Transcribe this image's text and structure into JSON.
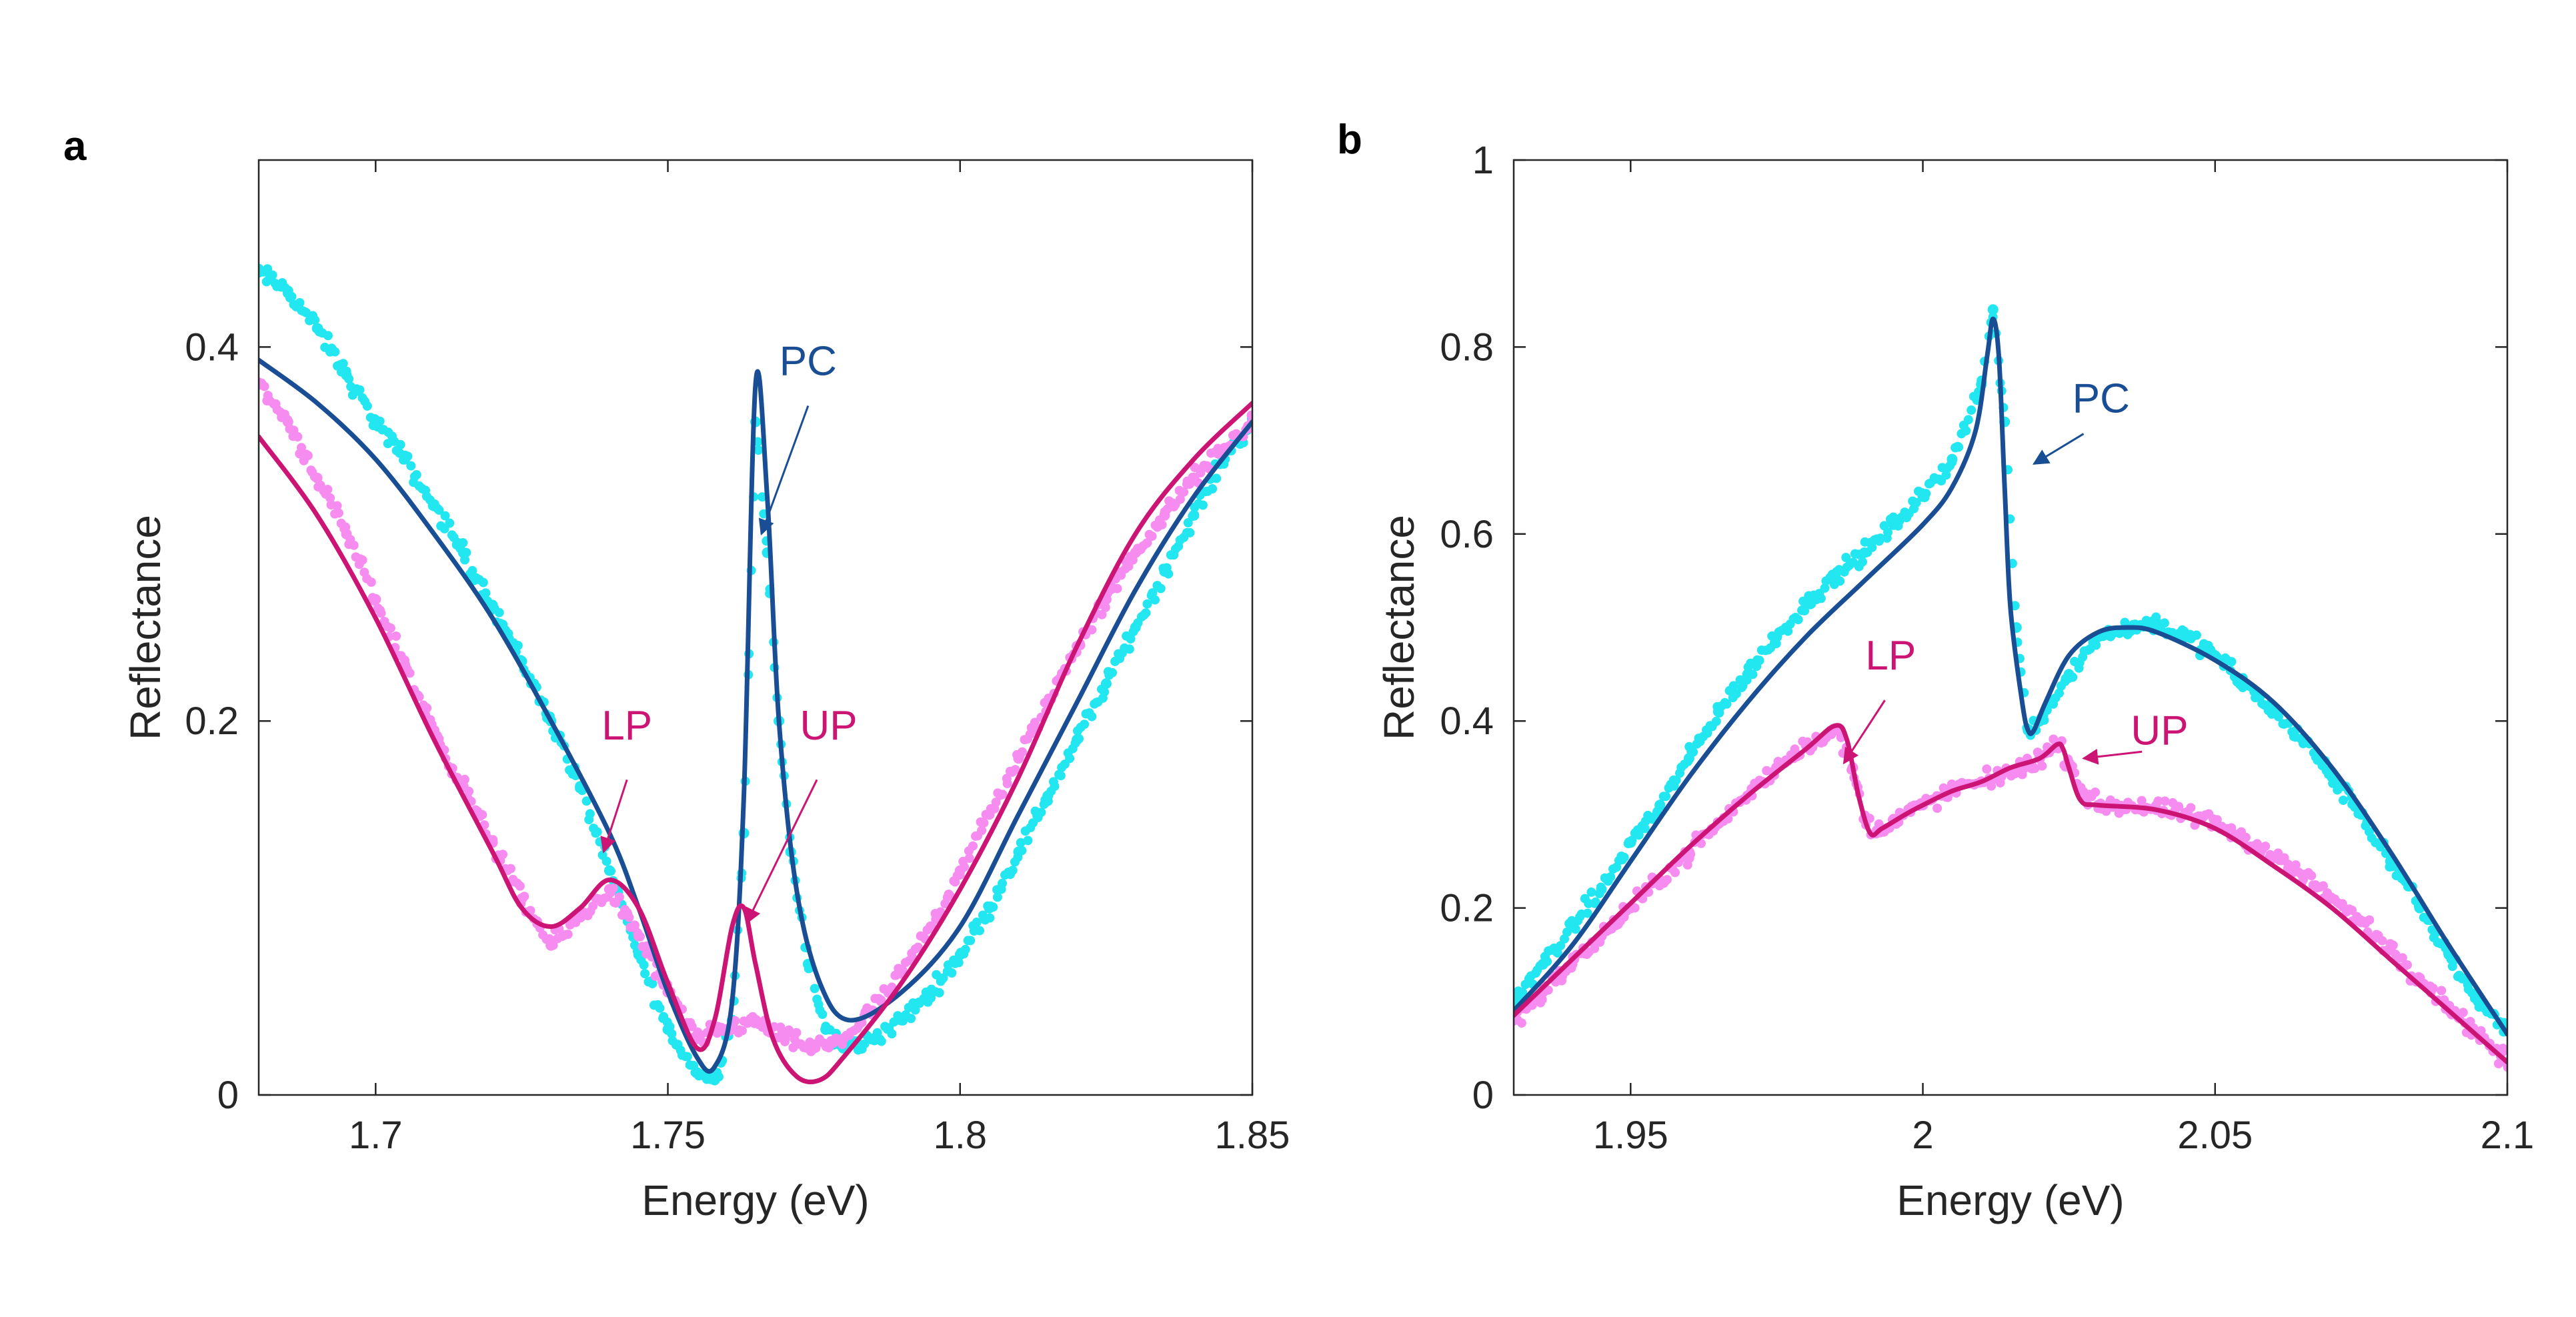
{
  "colors": {
    "pc_points": "#22E6F0",
    "pc_line": "#1A4E94",
    "pol_points": "#F78CF0",
    "pol_line": "#CC1474",
    "axis": "#262626"
  },
  "chart_data": [
    {
      "panel": "a",
      "type": "scatter",
      "xlabel": "Energy (eV)",
      "ylabel": "Reflectance",
      "xlim": [
        1.68,
        1.85
      ],
      "ylim": [
        0,
        0.5
      ],
      "xticks": [
        1.7,
        1.75,
        1.8,
        1.85
      ],
      "xtick_labels": [
        "1.7",
        "1.75",
        "1.8",
        "1.85"
      ],
      "yticks": [
        0,
        0.2,
        0.4
      ],
      "ytick_labels": [
        "0",
        "0.2",
        "0.4"
      ],
      "series": [
        {
          "name": "PC data",
          "kind": "points",
          "color": "#22E6F0",
          "x": [
            1.68,
            1.685,
            1.69,
            1.695,
            1.7,
            1.705,
            1.71,
            1.715,
            1.72,
            1.725,
            1.73,
            1.735,
            1.74,
            1.745,
            1.75,
            1.755,
            1.758,
            1.761,
            1.763,
            1.765,
            1.767,
            1.769,
            1.771,
            1.774,
            1.777,
            1.78,
            1.785,
            1.79,
            1.795,
            1.8,
            1.805,
            1.81,
            1.815,
            1.82,
            1.825,
            1.83,
            1.835,
            1.84,
            1.845,
            1.85
          ],
          "y": [
            0.44,
            0.43,
            0.41,
            0.385,
            0.36,
            0.34,
            0.315,
            0.29,
            0.262,
            0.232,
            0.2,
            0.165,
            0.12,
            0.075,
            0.035,
            0.012,
            0.008,
            0.04,
            0.14,
            0.36,
            0.29,
            0.2,
            0.13,
            0.07,
            0.035,
            0.025,
            0.03,
            0.04,
            0.055,
            0.075,
            0.1,
            0.13,
            0.16,
            0.19,
            0.22,
            0.25,
            0.28,
            0.31,
            0.34,
            0.36
          ]
        },
        {
          "name": "PC fit",
          "kind": "line",
          "color": "#1A4E94",
          "x": [
            1.68,
            1.69,
            1.7,
            1.71,
            1.72,
            1.73,
            1.74,
            1.745,
            1.75,
            1.755,
            1.758,
            1.761,
            1.763,
            1.765,
            1.767,
            1.769,
            1.772,
            1.776,
            1.781,
            1.79,
            1.8,
            1.81,
            1.82,
            1.83,
            1.84,
            1.85
          ],
          "y": [
            0.393,
            0.37,
            0.34,
            0.3,
            0.255,
            0.2,
            0.14,
            0.1,
            0.055,
            0.02,
            0.015,
            0.05,
            0.16,
            0.38,
            0.32,
            0.2,
            0.11,
            0.06,
            0.04,
            0.055,
            0.09,
            0.15,
            0.21,
            0.27,
            0.32,
            0.36
          ]
        },
        {
          "name": "Polariton data",
          "kind": "points",
          "color": "#F78CF0",
          "x": [
            1.68,
            1.685,
            1.69,
            1.695,
            1.7,
            1.705,
            1.71,
            1.715,
            1.72,
            1.725,
            1.73,
            1.735,
            1.74,
            1.745,
            1.75,
            1.755,
            1.76,
            1.765,
            1.77,
            1.775,
            1.78,
            1.785,
            1.79,
            1.795,
            1.8,
            1.805,
            1.81,
            1.815,
            1.82,
            1.825,
            1.83,
            1.835,
            1.84,
            1.845,
            1.85
          ],
          "y": [
            0.38,
            0.36,
            0.33,
            0.3,
            0.265,
            0.23,
            0.195,
            0.165,
            0.135,
            0.105,
            0.08,
            0.095,
            0.11,
            0.085,
            0.055,
            0.03,
            0.035,
            0.04,
            0.03,
            0.025,
            0.03,
            0.045,
            0.065,
            0.09,
            0.12,
            0.15,
            0.18,
            0.21,
            0.24,
            0.265,
            0.29,
            0.31,
            0.33,
            0.345,
            0.36
          ]
        },
        {
          "name": "Polariton fit",
          "kind": "line",
          "color": "#CC1474",
          "x": [
            1.68,
            1.69,
            1.7,
            1.71,
            1.72,
            1.725,
            1.73,
            1.735,
            1.74,
            1.745,
            1.75,
            1.755,
            1.758,
            1.761,
            1.763,
            1.765,
            1.768,
            1.772,
            1.776,
            1.78,
            1.79,
            1.8,
            1.81,
            1.82,
            1.83,
            1.84,
            1.85
          ],
          "y": [
            0.352,
            0.31,
            0.255,
            0.19,
            0.13,
            0.1,
            0.09,
            0.1,
            0.115,
            0.1,
            0.06,
            0.025,
            0.04,
            0.09,
            0.1,
            0.07,
            0.03,
            0.01,
            0.008,
            0.02,
            0.06,
            0.11,
            0.17,
            0.24,
            0.3,
            0.34,
            0.37
          ]
        }
      ],
      "annotations": [
        {
          "text": "PC",
          "color": "#1A4E94",
          "text_at": [
            1.774,
            0.385
          ],
          "arrow_from": [
            1.774,
            0.375
          ],
          "arrow_to": [
            1.766,
            0.3
          ]
        },
        {
          "text": "LP",
          "color": "#CC1474",
          "text_at": [
            1.743,
            0.19
          ],
          "arrow_from": [
            1.743,
            0.175
          ],
          "arrow_to": [
            1.739,
            0.13
          ]
        },
        {
          "text": "UP",
          "color": "#CC1474",
          "text_at": [
            1.7775,
            0.19
          ],
          "arrow_from": [
            1.7755,
            0.175
          ],
          "arrow_to": [
            1.7635,
            0.092
          ]
        }
      ]
    },
    {
      "panel": "b",
      "type": "scatter",
      "xlabel": "Energy (eV)",
      "ylabel": "Reflectance",
      "xlim": [
        1.93,
        2.1
      ],
      "ylim": [
        0,
        1
      ],
      "xticks": [
        1.95,
        2.0,
        2.05,
        2.1
      ],
      "xtick_labels": [
        "1.95",
        "2",
        "2.05",
        "2.1"
      ],
      "yticks": [
        0,
        0.2,
        0.4,
        0.6,
        0.8,
        1
      ],
      "ytick_labels": [
        "0",
        "0.2",
        "0.4",
        "0.6",
        "0.8",
        "1"
      ],
      "series": [
        {
          "name": "PC data",
          "kind": "points",
          "color": "#22E6F0",
          "x": [
            1.93,
            1.935,
            1.94,
            1.945,
            1.95,
            1.955,
            1.96,
            1.965,
            1.97,
            1.975,
            1.98,
            1.985,
            1.99,
            1.995,
            2.0,
            2.005,
            2.01,
            2.012,
            2.014,
            2.016,
            2.018,
            2.02,
            2.025,
            2.03,
            2.035,
            2.04,
            2.045,
            2.05,
            2.055,
            2.06,
            2.065,
            2.07,
            2.075,
            2.08,
            2.085,
            2.09,
            2.095,
            2.1
          ],
          "y": [
            0.1,
            0.14,
            0.18,
            0.22,
            0.27,
            0.31,
            0.36,
            0.41,
            0.45,
            0.49,
            0.525,
            0.555,
            0.58,
            0.61,
            0.64,
            0.68,
            0.76,
            0.84,
            0.72,
            0.5,
            0.39,
            0.4,
            0.45,
            0.49,
            0.5,
            0.505,
            0.49,
            0.47,
            0.44,
            0.41,
            0.38,
            0.34,
            0.3,
            0.25,
            0.2,
            0.15,
            0.1,
            0.07
          ]
        },
        {
          "name": "PC fit",
          "kind": "line",
          "color": "#1A4E94",
          "x": [
            1.93,
            1.94,
            1.95,
            1.96,
            1.97,
            1.98,
            1.99,
            2.0,
            2.005,
            2.009,
            2.011,
            2.012,
            2.013,
            2.014,
            2.015,
            2.017,
            2.018,
            2.019,
            2.021,
            2.025,
            2.03,
            2.035,
            2.04,
            2.05,
            2.06,
            2.07,
            2.08,
            2.09,
            2.1
          ],
          "y": [
            0.09,
            0.16,
            0.25,
            0.34,
            0.42,
            0.49,
            0.55,
            0.61,
            0.65,
            0.71,
            0.79,
            0.83,
            0.79,
            0.65,
            0.52,
            0.42,
            0.39,
            0.39,
            0.42,
            0.47,
            0.495,
            0.5,
            0.495,
            0.465,
            0.42,
            0.35,
            0.26,
            0.16,
            0.065
          ]
        },
        {
          "name": "Polariton data",
          "kind": "points",
          "color": "#F78CF0",
          "x": [
            1.93,
            1.935,
            1.94,
            1.945,
            1.95,
            1.955,
            1.96,
            1.965,
            1.97,
            1.975,
            1.98,
            1.985,
            1.988,
            1.99,
            1.992,
            1.995,
            2.0,
            2.005,
            2.01,
            2.015,
            2.02,
            2.023,
            2.025,
            2.028,
            2.03,
            2.035,
            2.04,
            2.045,
            2.05,
            2.055,
            2.06,
            2.065,
            2.07,
            2.075,
            2.08,
            2.085,
            2.09,
            2.095,
            2.1
          ],
          "y": [
            0.08,
            0.11,
            0.14,
            0.17,
            0.2,
            0.23,
            0.26,
            0.29,
            0.32,
            0.35,
            0.375,
            0.39,
            0.35,
            0.295,
            0.28,
            0.295,
            0.31,
            0.325,
            0.335,
            0.345,
            0.36,
            0.375,
            0.355,
            0.32,
            0.31,
            0.31,
            0.305,
            0.3,
            0.29,
            0.275,
            0.255,
            0.235,
            0.21,
            0.185,
            0.155,
            0.125,
            0.095,
            0.065,
            0.035
          ]
        },
        {
          "name": "Polariton fit",
          "kind": "line",
          "color": "#CC1474",
          "x": [
            1.93,
            1.94,
            1.95,
            1.96,
            1.97,
            1.98,
            1.985,
            1.987,
            1.989,
            1.991,
            1.993,
            1.997,
            2.0,
            2.005,
            2.01,
            2.015,
            2.02,
            2.023,
            2.024,
            2.025,
            2.027,
            2.03,
            2.04,
            2.05,
            2.06,
            2.07,
            2.08,
            2.09,
            2.1
          ],
          "y": [
            0.085,
            0.145,
            0.205,
            0.265,
            0.32,
            0.37,
            0.395,
            0.38,
            0.32,
            0.28,
            0.285,
            0.3,
            0.31,
            0.325,
            0.335,
            0.35,
            0.36,
            0.375,
            0.37,
            0.35,
            0.315,
            0.31,
            0.305,
            0.285,
            0.245,
            0.2,
            0.145,
            0.09,
            0.035
          ]
        }
      ],
      "annotations": [
        {
          "text": "PC",
          "color": "#1A4E94",
          "text_at": [
            2.0305,
            0.73
          ],
          "arrow_from": [
            2.0275,
            0.72
          ],
          "arrow_to": [
            2.019,
            0.675
          ]
        },
        {
          "text": "LP",
          "color": "#CC1474",
          "text_at": [
            1.9945,
            0.455
          ],
          "arrow_from": [
            1.9935,
            0.435
          ],
          "arrow_to": [
            1.9865,
            0.355
          ]
        },
        {
          "text": "UP",
          "color": "#CC1474",
          "text_at": [
            2.0405,
            0.375
          ],
          "arrow_from": [
            2.0375,
            0.38
          ],
          "arrow_to": [
            2.0275,
            0.36
          ]
        }
      ]
    }
  ]
}
